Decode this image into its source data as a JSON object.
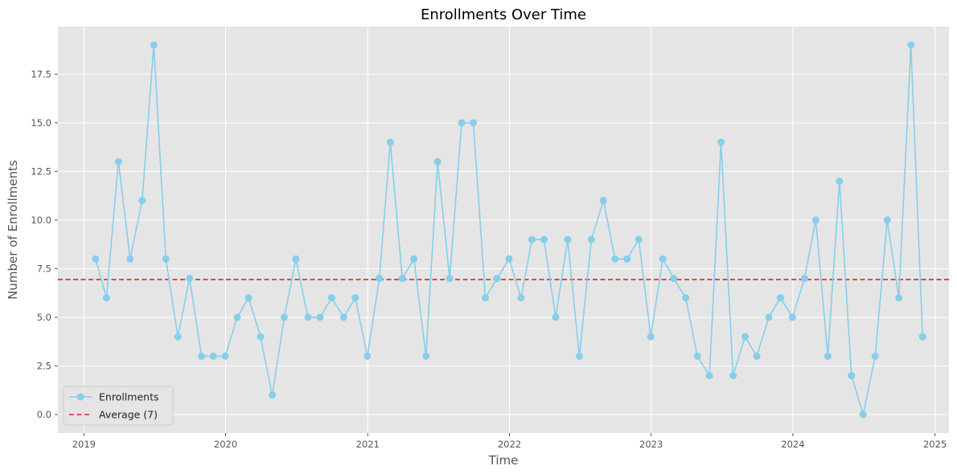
{
  "chart_data": {
    "type": "line",
    "title": "Enrollments Over Time",
    "xlabel": "Time",
    "ylabel": "Number of Enrollments",
    "x": [
      "2019-01-31",
      "2019-02-28",
      "2019-03-31",
      "2019-04-30",
      "2019-05-31",
      "2019-06-30",
      "2019-07-31",
      "2019-08-31",
      "2019-09-30",
      "2019-10-31",
      "2019-11-30",
      "2019-12-31",
      "2020-01-31",
      "2020-02-29",
      "2020-03-31",
      "2020-04-30",
      "2020-05-31",
      "2020-06-30",
      "2020-07-31",
      "2020-08-31",
      "2020-09-30",
      "2020-10-31",
      "2020-11-30",
      "2020-12-31",
      "2021-01-31",
      "2021-02-28",
      "2021-03-31",
      "2021-04-30",
      "2021-05-31",
      "2021-06-30",
      "2021-07-31",
      "2021-08-31",
      "2021-09-30",
      "2021-10-31",
      "2021-11-30",
      "2021-12-31",
      "2022-01-31",
      "2022-02-28",
      "2022-03-31",
      "2022-04-30",
      "2022-05-31",
      "2022-06-30",
      "2022-07-31",
      "2022-08-31",
      "2022-09-30",
      "2022-10-31",
      "2022-11-30",
      "2022-12-31",
      "2023-01-31",
      "2023-02-28",
      "2023-03-31",
      "2023-04-30",
      "2023-05-31",
      "2023-06-30",
      "2023-07-31",
      "2023-08-31",
      "2023-09-30",
      "2023-10-31",
      "2023-11-30",
      "2023-12-31",
      "2024-01-31",
      "2024-02-29",
      "2024-03-31",
      "2024-04-30",
      "2024-05-31",
      "2024-06-30",
      "2024-07-31",
      "2024-08-31",
      "2024-09-30",
      "2024-10-31",
      "2024-11-30"
    ],
    "series": [
      {
        "name": "Enrollments",
        "color": "#87CEEB",
        "values": [
          8,
          6,
          13,
          8,
          11,
          19,
          8,
          4,
          7,
          3,
          3,
          3,
          5,
          6,
          4,
          1,
          5,
          8,
          5,
          5,
          6,
          5,
          6,
          3,
          7,
          14,
          7,
          8,
          3,
          13,
          7,
          15,
          15,
          6,
          7,
          8,
          6,
          9,
          9,
          5,
          9,
          3,
          9,
          11,
          8,
          8,
          9,
          4,
          8,
          7,
          6,
          3,
          2,
          14,
          2,
          4,
          3,
          5,
          6,
          5,
          7,
          10,
          3,
          12,
          2,
          0,
          3,
          10,
          6,
          19,
          4
        ]
      }
    ],
    "average": {
      "name": "Average (7)",
      "value": 6.94,
      "color": "#d62728"
    },
    "xlim": [
      "2018-10-26",
      "2025-02-06"
    ],
    "ylim": [
      -0.95,
      19.95
    ],
    "x_ticks": [
      "2019",
      "2020",
      "2021",
      "2022",
      "2023",
      "2024",
      "2025"
    ],
    "y_ticks": [
      "0.0",
      "2.5",
      "5.0",
      "7.5",
      "10.0",
      "12.5",
      "15.0",
      "17.5"
    ],
    "grid": true,
    "legend_position": "lower-left"
  }
}
